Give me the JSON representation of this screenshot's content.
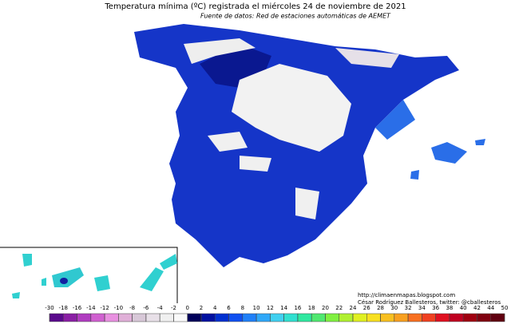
{
  "title": "Temperatura mínima (ºC) registrada el miércoles 24 de noviembre de 2021",
  "subtitle": "Fuente de datos: Red de estaciones automáticas de AEMET",
  "credits": [
    "http://climaenmapas.blogspot.com",
    "César Rodríguez Ballesteros, twitter: @cballesteros"
  ],
  "colorbar": {
    "ticks": [
      -30,
      -18,
      -16,
      -14,
      -12,
      -10,
      -8,
      -6,
      -4,
      -2,
      0,
      2,
      4,
      6,
      8,
      10,
      12,
      14,
      16,
      18,
      20,
      22,
      24,
      26,
      28,
      30,
      32,
      34,
      36,
      38,
      40,
      42,
      44,
      50
    ],
    "colors": [
      "#5a0a8c",
      "#8a1fa5",
      "#b03cc0",
      "#d060d0",
      "#e890e0",
      "#e0b0d8",
      "#d8c8d8",
      "#e8e0e8",
      "#f0f0f0",
      "#fafafa",
      "#00005a",
      "#0010a0",
      "#0030d0",
      "#1050f0",
      "#2080f8",
      "#30a8f8",
      "#40d0f0",
      "#30e0d0",
      "#30e8a0",
      "#50e870",
      "#80f040",
      "#b0f030",
      "#e0f020",
      "#f8e020",
      "#f8c020",
      "#f8a020",
      "#f87020",
      "#f04020",
      "#e01020",
      "#c00020",
      "#a00010",
      "#800010",
      "#600010"
    ]
  }
}
